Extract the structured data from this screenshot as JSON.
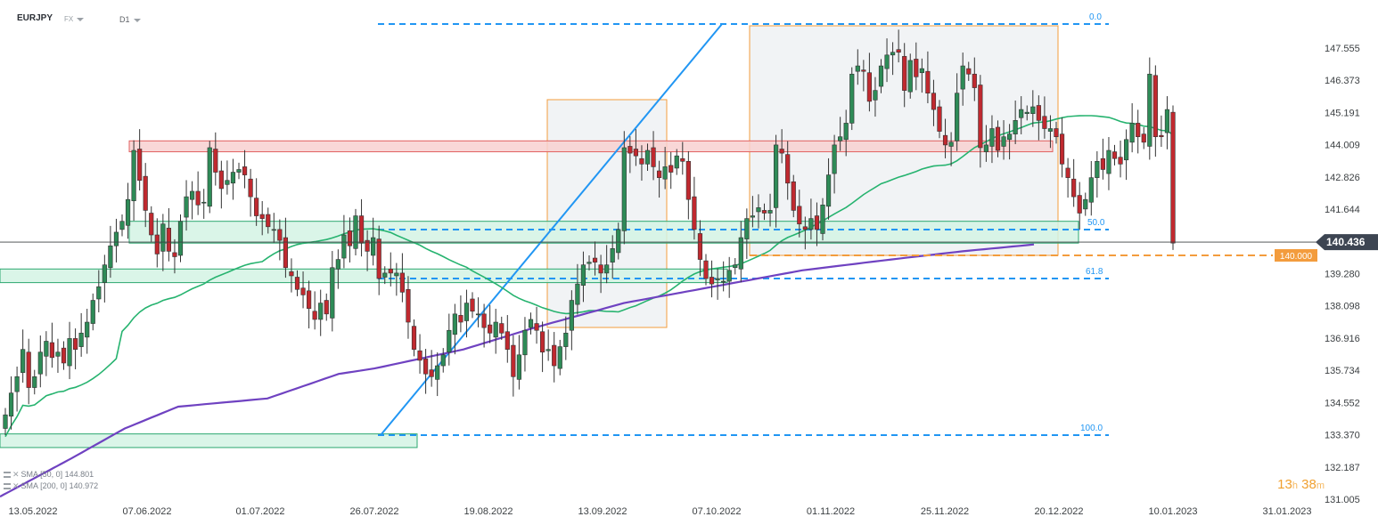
{
  "header": {
    "symbol": "EURJPY",
    "market": "FX",
    "interval": "D1"
  },
  "indicators": [
    {
      "name": "SMA",
      "params": "[50, 0]",
      "value": "144.801",
      "color": "#26b36f"
    },
    {
      "name": "SMA",
      "params": "[200, 0]",
      "value": "140.972",
      "color": "#6f42c1"
    }
  ],
  "timer": {
    "hours": "13",
    "h_unit": "h",
    "minutes": "38",
    "m_unit": "m"
  },
  "colors": {
    "up": "#2e8b57",
    "down": "#c0292f",
    "fib": "#2196f3",
    "orange": "#f39c3d",
    "resistance_fill": "#f8d0d0",
    "resistance_stroke": "#e06060",
    "support_fill": "#d4f3e4",
    "support_stroke": "#2ca870"
  },
  "chart_data": {
    "type": "candlestick",
    "symbol": "EURJPY",
    "timeframe": "D1",
    "ylim": [
      131.005,
      148.5
    ],
    "y_ticks": [
      "147.555",
      "146.373",
      "145.191",
      "144.009",
      "142.826",
      "141.644",
      "140.462",
      "139.280",
      "138.098",
      "136.916",
      "135.734",
      "134.552",
      "133.370",
      "132.187",
      "131.005"
    ],
    "x_tick_labels": [
      "13.05.2022",
      "07.06.2022",
      "01.07.2022",
      "26.07.2022",
      "19.08.2022",
      "13.09.2022",
      "07.10.2022",
      "01.11.2022",
      "25.11.2022",
      "20.12.2022",
      "10.01.2023",
      "31.01.2023"
    ],
    "current_price": "140.436",
    "level_marker": "140.000",
    "fib_levels": [
      {
        "label": "0.0",
        "price": 148.4
      },
      {
        "label": "50.0",
        "price": 140.88
      },
      {
        "label": "61.8",
        "price": 139.1
      },
      {
        "label": "100.0",
        "price": 133.4
      }
    ],
    "closes": [
      134.1,
      134.9,
      135.5,
      136.5,
      135.1,
      135.5,
      136.4,
      136.8,
      136.2,
      136.4,
      136.0,
      136.9,
      136.5,
      137.1,
      137.5,
      138.3,
      138.8,
      139.6,
      140.3,
      140.8,
      141.2,
      142.0,
      143.8,
      142.7,
      141.6,
      140.7,
      140.0,
      141.1,
      140.1,
      139.9,
      141.2,
      142.1,
      142.3,
      141.8,
      141.9,
      143.9,
      143.0,
      142.4,
      142.7,
      143.0,
      143.1,
      142.9,
      142.1,
      141.4,
      141.3,
      141.0,
      140.9,
      140.5,
      139.5,
      139.2,
      138.7,
      138.5,
      138.0,
      137.6,
      138.2,
      137.8,
      139.5,
      139.8,
      140.7,
      140.3,
      141.4,
      140.4,
      140.1,
      140.6,
      139.1,
      139.3,
      139.3,
      139.3,
      138.6,
      137.5,
      136.5,
      136.1,
      135.6,
      135.5,
      135.9,
      136.3,
      137.2,
      137.8,
      137.5,
      138.2,
      137.9,
      137.8,
      137.3,
      137.1,
      137.5,
      137.1,
      136.5,
      135.5,
      136.3,
      137.2,
      137.6,
      137.2,
      136.4,
      136.5,
      135.9,
      136.6,
      137.1,
      138.3,
      138.9,
      139.6,
      139.7,
      139.7,
      139.3,
      139.6,
      140.2,
      140.9,
      143.9,
      143.7,
      143.6,
      143.3,
      143.8,
      143.2,
      142.8,
      143.2,
      143.0,
      143.6,
      143.4,
      142.0,
      140.9,
      139.8,
      139.1,
      138.9,
      139.1,
      139.0,
      139.4,
      139.6,
      140.6,
      141.3,
      141.4,
      141.7,
      141.5,
      141.6,
      144.0,
      143.7,
      142.6,
      141.6,
      141.1,
      140.9,
      141.3,
      140.9,
      141.8,
      142.9,
      144.0,
      144.3,
      144.8,
      146.6,
      146.9,
      146.7,
      145.6,
      146.0,
      146.9,
      147.3,
      147.4,
      147.4,
      146.0,
      147.1,
      146.5,
      146.8,
      145.9,
      145.3,
      144.5,
      144.0,
      144.1,
      145.9,
      146.9,
      146.6,
      146.1,
      143.9,
      144.0,
      144.6,
      143.8,
      144.3,
      144.4,
      144.9,
      145.3,
      145.2,
      145.4,
      144.9,
      144.6,
      144.6,
      144.3,
      143.3,
      142.8,
      142.1,
      141.5,
      142.0,
      142.8,
      143.4,
      143.1,
      143.8,
      143.5,
      143.3,
      144.2,
      144.8,
      144.3,
      144.1,
      146.6,
      144.3,
      144.3,
      145.3,
      140.4
    ],
    "zones": [
      {
        "kind": "resistance",
        "from": 143.75,
        "to": 144.15,
        "x_start": "07.06.2022",
        "x_end": "20.12.2022"
      },
      {
        "kind": "support",
        "from": 140.4,
        "to": 141.2,
        "x_start": "07.06.2022",
        "x_end": "20.12.2022"
      },
      {
        "kind": "support",
        "from": 138.95,
        "to": 139.45,
        "x_start": "13.05.2022",
        "x_end": "07.10.2022"
      },
      {
        "kind": "support",
        "from": 132.9,
        "to": 133.4,
        "x_start": "13.05.2022",
        "x_end": "01.08.2022"
      }
    ]
  }
}
